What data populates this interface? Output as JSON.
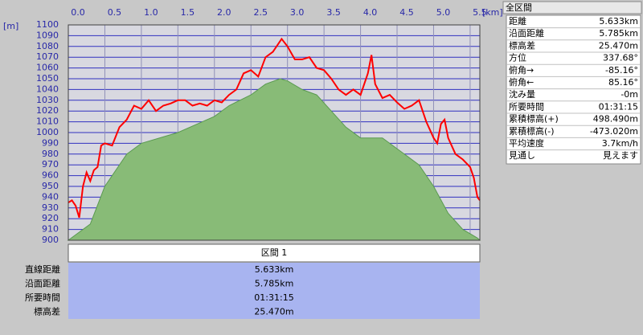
{
  "chart_data": {
    "type": "line",
    "x_label": "[km]",
    "y_label": "[m]",
    "xlim": [
      0,
      5.633
    ],
    "ylim": [
      900,
      1100
    ],
    "xticks": [
      {
        "value": 0,
        "label": "0.0"
      },
      0.5,
      {
        "value": 1,
        "label": "1.0"
      },
      1.5,
      {
        "value": 2,
        "label": "2.0"
      },
      2.5,
      {
        "value": 3,
        "label": "3.0"
      },
      3.5,
      {
        "value": 4,
        "label": "4.0"
      },
      4.5,
      {
        "value": 5,
        "label": "5.0"
      },
      5.5
    ],
    "yticks": [
      900,
      910,
      920,
      930,
      940,
      950,
      960,
      970,
      980,
      990,
      1000,
      1010,
      1020,
      1030,
      1040,
      1050,
      1060,
      1070,
      1080,
      1090,
      1100
    ],
    "grid": true,
    "series": [
      {
        "color": "#88bb77",
        "fill": true,
        "x": [
          0,
          0.3,
          0.5,
          0.8,
          1.0,
          1.5,
          2.0,
          2.2,
          2.5,
          2.7,
          2.9,
          3.0,
          3.2,
          3.4,
          3.6,
          3.8,
          4.0,
          4.3,
          4.5,
          4.8,
          5.0,
          5.2,
          5.4,
          5.6,
          5.633
        ],
        "values": [
          900,
          915,
          950,
          980,
          990,
          1000,
          1015,
          1025,
          1035,
          1045,
          1050,
          1048,
          1040,
          1035,
          1020,
          1005,
          995,
          995,
          985,
          970,
          950,
          925,
          910,
          902,
          900
        ]
      },
      {
        "color": "#ff0000",
        "fill": false,
        "x": [
          0,
          0.05,
          0.1,
          0.15,
          0.2,
          0.25,
          0.3,
          0.35,
          0.4,
          0.45,
          0.5,
          0.6,
          0.7,
          0.8,
          0.9,
          1.0,
          1.1,
          1.2,
          1.3,
          1.4,
          1.5,
          1.6,
          1.7,
          1.8,
          1.9,
          2.0,
          2.1,
          2.2,
          2.3,
          2.4,
          2.5,
          2.6,
          2.7,
          2.8,
          2.92,
          3.0,
          3.1,
          3.2,
          3.3,
          3.4,
          3.5,
          3.6,
          3.7,
          3.8,
          3.9,
          4.0,
          4.1,
          4.15,
          4.2,
          4.3,
          4.4,
          4.5,
          4.6,
          4.7,
          4.8,
          4.9,
          5.0,
          5.05,
          5.1,
          5.15,
          5.2,
          5.3,
          5.4,
          5.5,
          5.55,
          5.6,
          5.633
        ],
        "values": [
          935,
          937,
          932,
          921,
          950,
          963,
          955,
          965,
          968,
          988,
          990,
          988,
          1005,
          1012,
          1025,
          1022,
          1030,
          1020,
          1025,
          1027,
          1030,
          1030,
          1025,
          1027,
          1025,
          1030,
          1028,
          1035,
          1040,
          1055,
          1058,
          1052,
          1070,
          1075,
          1087,
          1080,
          1068,
          1068,
          1070,
          1060,
          1058,
          1050,
          1040,
          1035,
          1040,
          1035,
          1055,
          1072,
          1045,
          1032,
          1035,
          1028,
          1022,
          1025,
          1030,
          1010,
          995,
          990,
          1008,
          1012,
          995,
          980,
          975,
          968,
          958,
          940,
          937
        ]
      }
    ]
  },
  "side_panel": {
    "title": "全区間",
    "rows": [
      [
        "距離",
        "5.633km"
      ],
      [
        "沿面距離",
        "5.785km"
      ],
      [
        "標高差",
        "25.470m"
      ],
      [
        "方位",
        "337.68°"
      ],
      [
        "俯角→",
        "-85.16°"
      ],
      [
        "俯角←",
        "85.16°"
      ],
      [
        "沈み量",
        "-0m"
      ],
      [
        "所要時間",
        "01:31:15"
      ],
      [
        "累積標高(+)",
        "498.490m"
      ],
      [
        "累積標高(-)",
        "-473.020m"
      ],
      [
        "平均速度",
        "3.7km/h"
      ],
      [
        "見通し",
        "見えます"
      ]
    ]
  },
  "section_table": {
    "header": "区間 1",
    "rows": [
      [
        "直線距離",
        "5.633km"
      ],
      [
        "沿面距離",
        "5.785km"
      ],
      [
        "所要時間",
        "01:31:15"
      ],
      [
        "標高差",
        "25.470m"
      ]
    ]
  }
}
